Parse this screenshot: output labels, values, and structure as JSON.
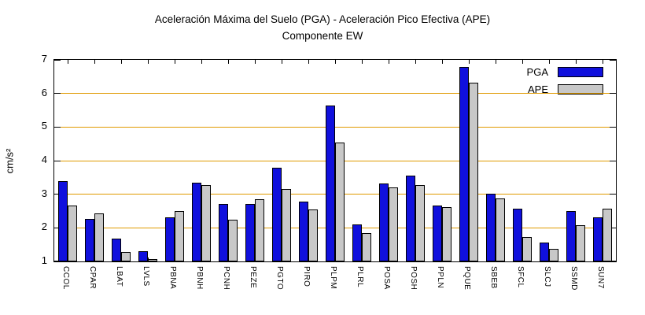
{
  "title": {
    "line1": "Aceleración Máxima del Suelo (PGA) - Aceleración Pico Efectiva (APE)",
    "line2": "Componente EW"
  },
  "chart_data": {
    "type": "bar",
    "title": "Aceleración Máxima del Suelo (PGA) - Aceleración Pico Efectiva (APE)",
    "subtitle": "Componente EW",
    "xlabel": "",
    "ylabel": "cm/s²",
    "ylim": [
      1,
      7
    ],
    "yticks": [
      1,
      2,
      3,
      4,
      5,
      6,
      7
    ],
    "grid": true,
    "grid_color": "#e09a00",
    "axis_color": "#000000",
    "background": "#ffffff",
    "legend_position": "top-right",
    "categories": [
      "CCOL",
      "CPAR",
      "LBAT",
      "LVLS",
      "PBNA",
      "PBNH",
      "PCNH",
      "PEZE",
      "PGTO",
      "PIRO",
      "PLPM",
      "PLRL",
      "POSA",
      "POSH",
      "PPLN",
      "PQUE",
      "SBEB",
      "SFCL",
      "SLCJ",
      "SSMD",
      "SUN7"
    ],
    "series": [
      {
        "name": "PGA",
        "color": "#1010dd",
        "values": [
          3.38,
          2.27,
          1.68,
          1.3,
          2.32,
          3.35,
          2.7,
          2.7,
          3.8,
          2.78,
          5.65,
          2.1,
          3.32,
          3.55,
          2.67,
          6.78,
          3.02,
          2.57,
          1.57,
          2.5,
          2.32
        ]
      },
      {
        "name": "APE",
        "color": "#c8c8c8",
        "values": [
          2.67,
          2.42,
          1.27,
          1.07,
          2.5,
          3.27,
          2.25,
          2.85,
          3.15,
          2.55,
          4.55,
          1.85,
          3.2,
          3.28,
          2.62,
          6.32,
          2.88,
          1.72,
          1.37,
          2.07,
          2.57
        ]
      }
    ]
  }
}
